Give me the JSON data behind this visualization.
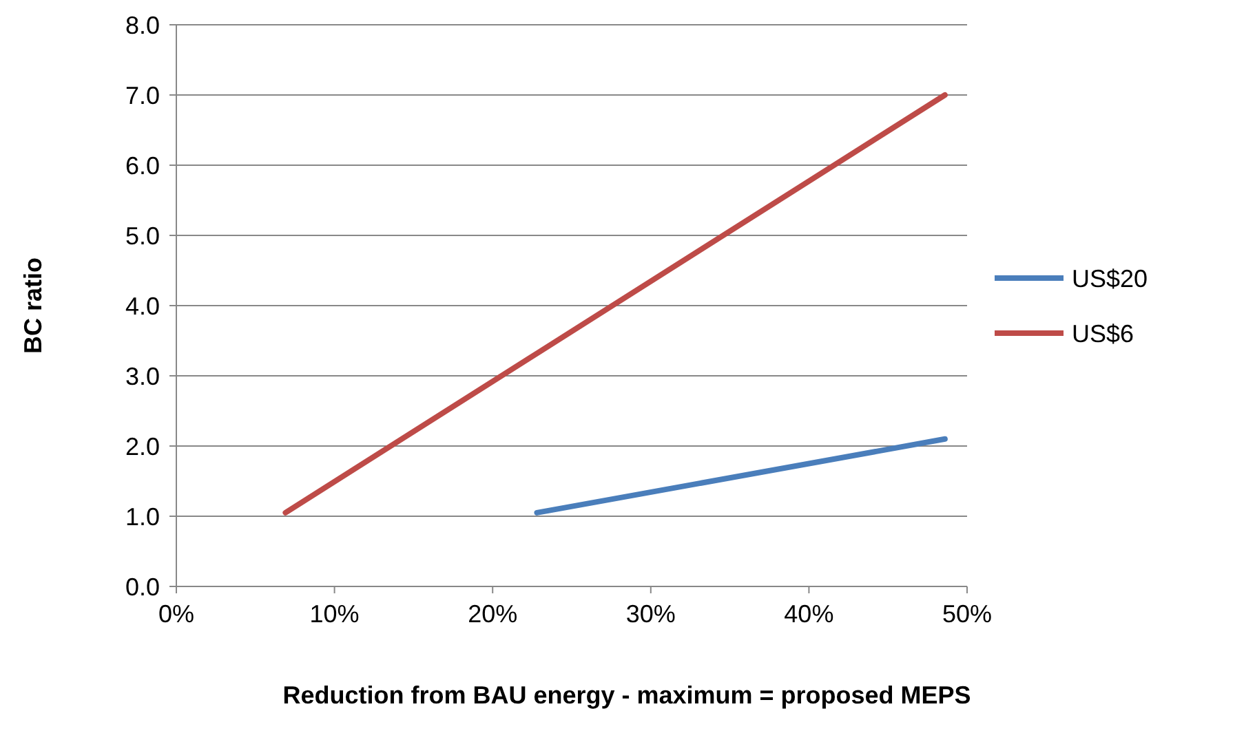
{
  "chart_data": {
    "type": "line",
    "xlabel": "Reduction from BAU energy - maximum = proposed MEPS",
    "ylabel": "BC ratio",
    "xlim": [
      0,
      50
    ],
    "xticks": [
      {
        "value": 0,
        "label": "0%"
      },
      {
        "value": 10,
        "label": "10%"
      },
      {
        "value": 20,
        "label": "20%"
      },
      {
        "value": 30,
        "label": "30%"
      },
      {
        "value": 40,
        "label": "40%"
      },
      {
        "value": 50,
        "label": "50%"
      }
    ],
    "ylim": [
      0,
      8
    ],
    "yticks": [
      {
        "value": 0,
        "label": "0.0"
      },
      {
        "value": 1,
        "label": "1.0"
      },
      {
        "value": 2,
        "label": "2.0"
      },
      {
        "value": 3,
        "label": "3.0"
      },
      {
        "value": 4,
        "label": "4.0"
      },
      {
        "value": 5,
        "label": "5.0"
      },
      {
        "value": 6,
        "label": "6.0"
      },
      {
        "value": 7,
        "label": "7.0"
      },
      {
        "value": 8,
        "label": "8.0"
      }
    ],
    "grid": "y",
    "legend": "right",
    "marker": "none",
    "line_style": "solid",
    "series": [
      {
        "name": "US$20",
        "color": "#4a7ebb",
        "x": [
          22.8,
          48.6
        ],
        "values": [
          1.05,
          2.1
        ]
      },
      {
        "name": "US$6",
        "color": "#be4b48",
        "x": [
          6.9,
          48.6
        ],
        "values": [
          1.05,
          7.0
        ]
      }
    ]
  }
}
